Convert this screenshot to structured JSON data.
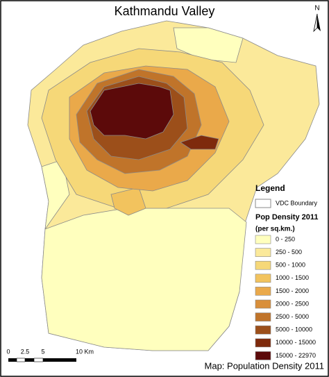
{
  "title": "Kathmandu Valley",
  "north": "N",
  "legend": {
    "title": "Legend",
    "boundary": "VDC Boundary",
    "heading": "Pop Density 2011",
    "unit": "(per sq.km.)",
    "classes": [
      {
        "label": "0 - 250",
        "color": "#ffffbe"
      },
      {
        "label": "250 - 500",
        "color": "#fbe99a"
      },
      {
        "label": "500 - 1000",
        "color": "#f6d878"
      },
      {
        "label": "1000 - 1500",
        "color": "#f2c35e"
      },
      {
        "label": "1500 - 2000",
        "color": "#eaa94a"
      },
      {
        "label": "2000 - 2500",
        "color": "#d98f3a"
      },
      {
        "label": "2500 - 5000",
        "color": "#c0742a"
      },
      {
        "label": "5000 - 10000",
        "color": "#9c4f1a"
      },
      {
        "label": "10000 - 15000",
        "color": "#7e2a0c"
      },
      {
        "label": "15000 - 22970",
        "color": "#5c0a0a"
      }
    ]
  },
  "scale_bar": {
    "labels": [
      "0",
      "2.5",
      "5",
      "10 Km"
    ]
  },
  "caption": "Map: Population Density 2011"
}
